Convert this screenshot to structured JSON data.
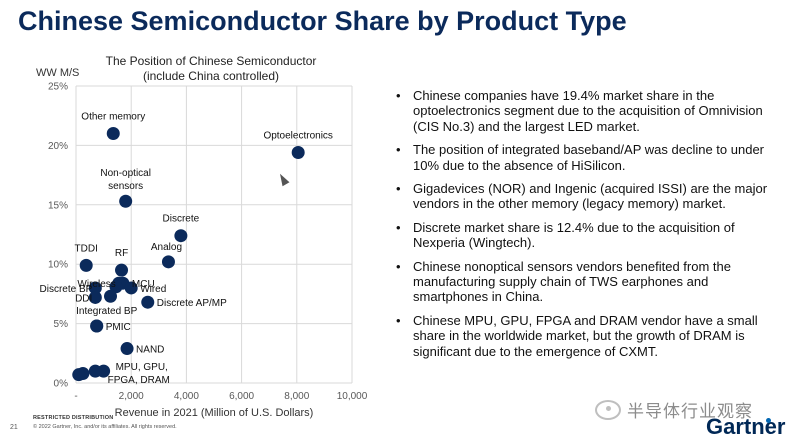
{
  "slide": {
    "title": "Chinese Semiconductor Share by Product Type",
    "restricted": "RESTRICTED DISTRIBUTION",
    "page_number": "21",
    "copyright": "© 2022 Gartner, Inc. and/or its affiliates. All rights reserved.",
    "watermark_text": "半导体行业观察",
    "logo_text": "Gartner"
  },
  "bullets": [
    "Chinese companies have 19.4% market share in the optoelectronics segment due to the acquisition of Omnivision (CIS No.3) and the largest LED market.",
    "The position of integrated baseband/AP was decline to under 10% due to the absence of HiSilicon.",
    "Gigadevices (NOR) and Ingenic (acquired ISSI) are the major vendors in the other memory (legacy memory) market.",
    "Discrete market share is 12.4% due to the acquisition of Nexperia (Wingtech).",
    "Chinese nonoptical sensors vendors benefited from the manufacturing supply chain of TWS earphones and smartphones in China.",
    "Chinese MPU, GPU, FPGA and DRAM vendor have a small share in the worldwide market, but the growth of DRAM is significant due to the emergence of CXMT."
  ],
  "colors": {
    "title": "#0b2a5b",
    "point": "#0b2a5b",
    "grid": "#d9d9d9",
    "axis_text": "#595959"
  },
  "chart_data": {
    "type": "scatter",
    "title_line1": "The Position of Chinese Semiconductor",
    "title_line2": "(include China controlled)",
    "xlabel": "Revenue in 2021 (Million of U.S. Dollars)",
    "ylabel": "WW M/S",
    "xlim": [
      0,
      10000
    ],
    "ylim": [
      0,
      25
    ],
    "x_ticks": [
      0,
      2000,
      4000,
      6000,
      8000,
      10000
    ],
    "x_tick_labels": [
      "-",
      "2,000",
      "4,000",
      "6,000",
      "8,000",
      "10,000"
    ],
    "y_ticks": [
      0,
      5,
      10,
      15,
      20,
      25
    ],
    "y_tick_labels": [
      "0%",
      "5%",
      "10%",
      "15%",
      "20%",
      "25%"
    ],
    "grid": true,
    "points": [
      {
        "label": "Other memory",
        "x": 1350,
        "y": 21.0,
        "pos": "above"
      },
      {
        "label": "Optoelectronics",
        "x": 8050,
        "y": 19.4,
        "pos": "above"
      },
      {
        "label": "Non-optical sensors",
        "x": 1800,
        "y": 15.3,
        "pos": "above2"
      },
      {
        "label": "Discrete",
        "x": 3800,
        "y": 12.4,
        "pos": "above"
      },
      {
        "label": "Analog",
        "x": 3350,
        "y": 10.2,
        "pos": "aboveleft"
      },
      {
        "label": "TDDI",
        "x": 370,
        "y": 9.9,
        "pos": "above"
      },
      {
        "label": "RF",
        "x": 1650,
        "y": 9.5,
        "pos": "above"
      },
      {
        "label": "MCU",
        "x": 1700,
        "y": 8.4,
        "pos": "right"
      },
      {
        "label": "Wireless",
        "x": 1550,
        "y": 8.4,
        "pos": "left"
      },
      {
        "label": "Wired",
        "x": 2000,
        "y": 8.0,
        "pos": "right"
      },
      {
        "label": "Discrete BP",
        "x": 700,
        "y": 8.0,
        "pos": "left"
      },
      {
        "label": "",
        "x": 1450,
        "y": 8.1,
        "pos": "none"
      },
      {
        "label": "DDI",
        "x": 700,
        "y": 7.2,
        "pos": "left"
      },
      {
        "label": "",
        "x": 1250,
        "y": 7.3,
        "pos": "none"
      },
      {
        "label": "Discrete AP/MP",
        "x": 2600,
        "y": 6.8,
        "pos": "right"
      },
      {
        "label": "Integrated BP",
        "x": 750,
        "y": 4.8,
        "pos": "abovecenter"
      },
      {
        "label": "PMIC",
        "x": 750,
        "y": 4.8,
        "pos": "right"
      },
      {
        "label": "NAND",
        "x": 1850,
        "y": 2.9,
        "pos": "right"
      },
      {
        "label": "MPU, GPU, FPGA, DRAM",
        "x": 1000,
        "y": 1.0,
        "pos": "rightdown"
      },
      {
        "label": "",
        "x": 700,
        "y": 1.0,
        "pos": "none"
      },
      {
        "label": "",
        "x": 250,
        "y": 0.8,
        "pos": "none"
      },
      {
        "label": "",
        "x": 100,
        "y": 0.7,
        "pos": "none"
      }
    ]
  }
}
